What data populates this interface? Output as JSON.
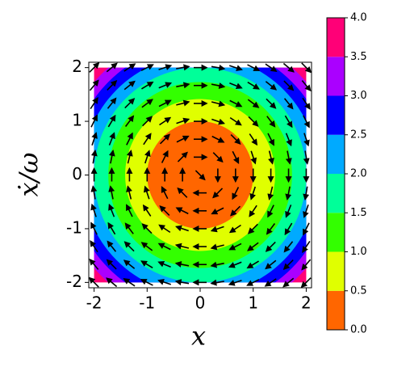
{
  "chart_data": {
    "type": "contour",
    "x_label": "x",
    "y_label": "ẋ/ω",
    "xlim": [
      -2.1,
      2.1
    ],
    "ylim": [
      -2.1,
      2.1
    ],
    "xticks": [
      -2,
      -1,
      0,
      1,
      2
    ],
    "yticks": [
      -2,
      -1,
      0,
      1,
      2
    ],
    "levels": [
      0,
      0.5,
      1,
      1.5,
      2,
      2.5,
      3,
      3.5,
      4
    ],
    "colors": [
      "#ff6600",
      "#e0ff00",
      "#33ff00",
      "#00ff99",
      "#00aaff",
      "#0000ff",
      "#aa00ff",
      "#ff0077"
    ],
    "colorbar_ticks": [
      {
        "value": 0,
        "label": "0.0"
      },
      {
        "value": 0.5,
        "label": "0.5"
      },
      {
        "value": 1,
        "label": "1.0"
      },
      {
        "value": 1.5,
        "label": "1.5"
      },
      {
        "value": 2,
        "label": "2.0"
      },
      {
        "value": 2.5,
        "label": "2.5"
      },
      {
        "value": 3,
        "label": "3.0"
      },
      {
        "value": 3.5,
        "label": "3.5"
      },
      {
        "value": 4,
        "label": "4.0"
      }
    ],
    "quiver_grid": [
      -2,
      -1.667,
      -1.333,
      -1,
      -0.667,
      -0.333,
      0,
      0.333,
      0.667,
      1,
      1.333,
      1.667,
      2
    ]
  }
}
